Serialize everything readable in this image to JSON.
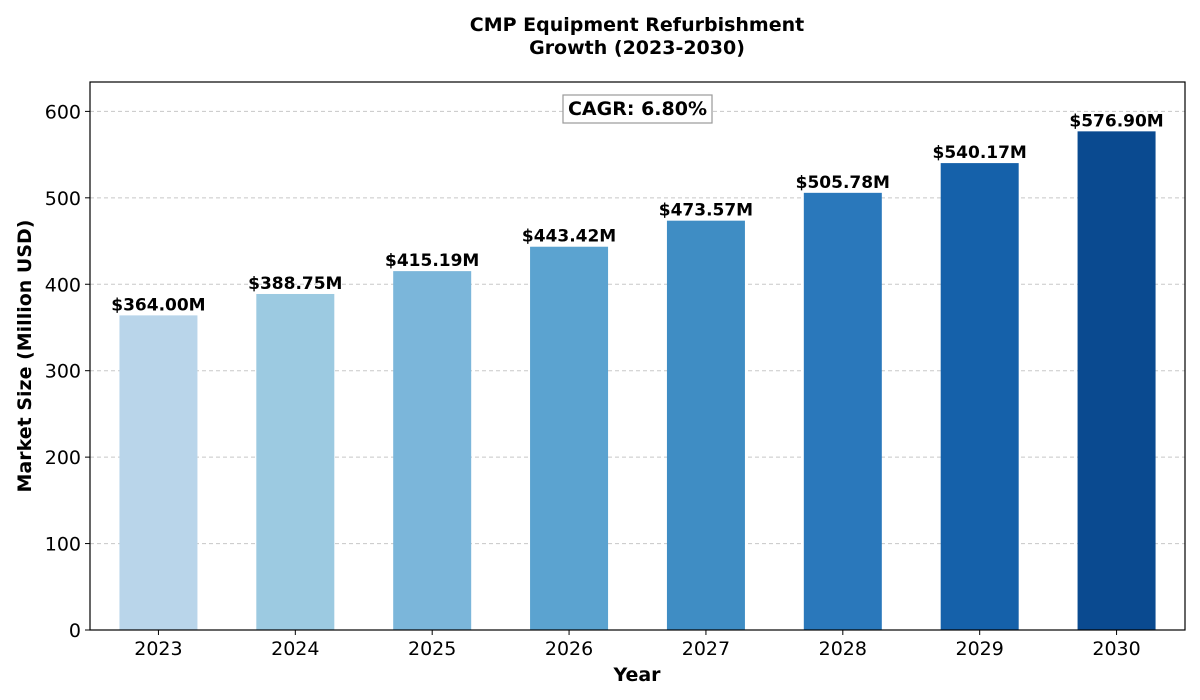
{
  "chart_data": {
    "type": "bar",
    "title_lines": [
      "CMP Equipment Refurbishment",
      "Growth (2023-2030)"
    ],
    "xlabel": "Year",
    "ylabel": "Market Size (Million USD)",
    "categories": [
      "2023",
      "2024",
      "2025",
      "2026",
      "2027",
      "2028",
      "2029",
      "2030"
    ],
    "values": [
      364.0,
      388.75,
      415.19,
      443.42,
      473.57,
      505.78,
      540.17,
      576.9
    ],
    "data_labels": [
      "$364.00M",
      "$388.75M",
      "$415.19M",
      "$443.42M",
      "$473.57M",
      "$505.78M",
      "$540.17M",
      "$576.90M"
    ],
    "colors": [
      "#b9d5ea",
      "#9ccae1",
      "#7bb6da",
      "#5ba3d0",
      "#3f8dc4",
      "#2a78bb",
      "#1561aa",
      "#0a4a90"
    ],
    "ylim": [
      0,
      634
    ],
    "yticks": [
      0,
      100,
      200,
      300,
      400,
      500,
      600
    ],
    "grid": true,
    "annotation": "CAGR: 6.80%"
  }
}
